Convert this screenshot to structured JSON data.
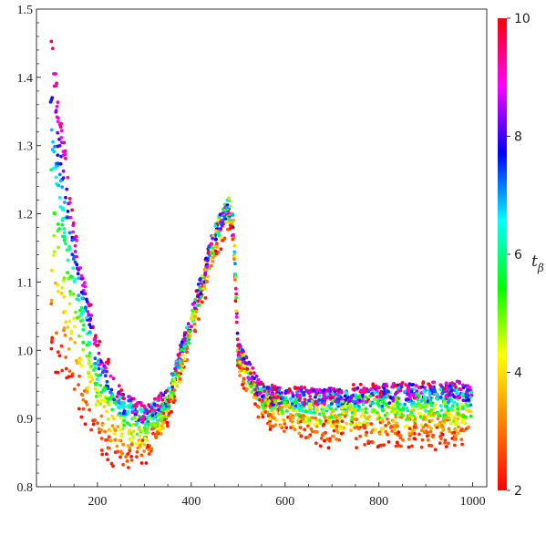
{
  "chart_data": {
    "type": "scatter",
    "title": "",
    "xlabel": "",
    "ylabel": "",
    "xlim": [
      70,
      1030
    ],
    "ylim": [
      0.8,
      1.5
    ],
    "x_ticks": [
      200,
      400,
      600,
      800,
      1000
    ],
    "y_ticks": [
      0.8,
      0.9,
      1.0,
      1.1,
      1.2,
      1.3,
      1.4,
      1.5
    ],
    "x_tick_labels": [
      "200",
      "400",
      "600",
      "800",
      "1000"
    ],
    "y_tick_labels": [
      "0.8",
      "0.9",
      "1.0",
      "1.1",
      "1.2",
      "1.3",
      "1.4",
      "1.5"
    ],
    "grid": false,
    "x_range": [
      100,
      1000
    ],
    "color_variable": "t_β",
    "colorbar": {
      "title_base": "t",
      "title_sub": "β",
      "min": 2,
      "max": 10,
      "ticks": [
        2,
        4,
        6,
        8,
        10
      ],
      "tick_labels": [
        "2",
        "4",
        "6",
        "8",
        "10"
      ],
      "colors": [
        "#ff0000",
        "#ff8000",
        "#ffff00",
        "#00ff00",
        "#00ffff",
        "#0000ff",
        "#ff00ff",
        "#ff0000"
      ]
    },
    "series": [
      {
        "t_beta": 2,
        "x": [
          100,
          150,
          200,
          250,
          300,
          350,
          400,
          450,
          480,
          490,
          500,
          550,
          600,
          700,
          800,
          900,
          1000
        ],
        "y": [
          1.0,
          0.93,
          0.86,
          0.835,
          0.845,
          0.9,
          1.02,
          1.14,
          1.19,
          1.17,
          0.96,
          0.91,
          0.885,
          0.875,
          0.87,
          0.87,
          0.87
        ]
      },
      {
        "t_beta": 4,
        "x": [
          100,
          150,
          200,
          250,
          300,
          350,
          400,
          450,
          480,
          490,
          500,
          550,
          600,
          700,
          800,
          900,
          1000
        ],
        "y": [
          1.13,
          1.02,
          0.92,
          0.88,
          0.875,
          0.91,
          1.03,
          1.16,
          1.21,
          1.19,
          0.99,
          0.92,
          0.905,
          0.9,
          0.9,
          0.9,
          0.9
        ]
      },
      {
        "t_beta": 6,
        "x": [
          100,
          150,
          200,
          250,
          300,
          350,
          400,
          450,
          480,
          490,
          500,
          550,
          600,
          700,
          800,
          900,
          1000
        ],
        "y": [
          1.27,
          1.1,
          0.96,
          0.91,
          0.895,
          0.925,
          1.04,
          1.17,
          1.21,
          1.19,
          1.0,
          0.93,
          0.92,
          0.92,
          0.925,
          0.925,
          0.925
        ]
      },
      {
        "t_beta": 8,
        "x": [
          100,
          150,
          200,
          250,
          300,
          350,
          400,
          450,
          480,
          490,
          500,
          550,
          600,
          700,
          800,
          900,
          1000
        ],
        "y": [
          1.39,
          1.15,
          0.99,
          0.925,
          0.905,
          0.93,
          1.045,
          1.17,
          1.21,
          1.18,
          1.0,
          0.935,
          0.93,
          0.932,
          0.935,
          0.938,
          0.94
        ]
      },
      {
        "t_beta": 10,
        "x": [
          100,
          150,
          200,
          250,
          300,
          350,
          400,
          450,
          480,
          490,
          500,
          550,
          600,
          700,
          800,
          900,
          1000
        ],
        "y": [
          1.48,
          1.19,
          1.01,
          0.935,
          0.91,
          0.935,
          1.05,
          1.17,
          1.2,
          1.17,
          1.0,
          0.94,
          0.935,
          0.937,
          0.94,
          0.943,
          0.945
        ]
      }
    ]
  }
}
